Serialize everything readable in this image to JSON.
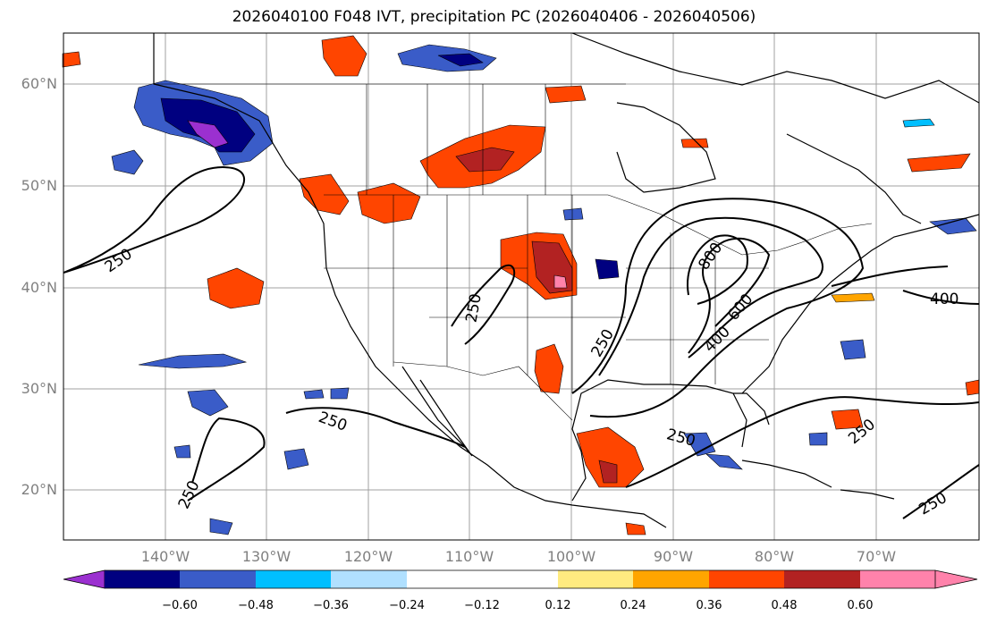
{
  "title": "2026040100 F048 IVT, precipitation PC (2026040406 - 2026040506)",
  "map": {
    "lat_labels": [
      "60°N",
      "50°N",
      "40°N",
      "30°N",
      "20°N"
    ],
    "lon_labels": [
      "140°W",
      "130°W",
      "120°W",
      "110°W",
      "100°W",
      "90°W",
      "80°W",
      "70°W"
    ],
    "gridline_color": "#a0a0a0",
    "contour_labels": [
      "250",
      "250",
      "250",
      "250",
      "250",
      "250",
      "250",
      "250",
      "400",
      "400",
      "600",
      "800"
    ]
  },
  "colorbar": {
    "colors": [
      "#9b30d0",
      "#000080",
      "#3a5cc8",
      "#00bfff",
      "#b0e0ff",
      "#ffffff",
      "#ffffff",
      "#ffeb80",
      "#ffa500",
      "#ff4500",
      "#b22222",
      "#ff82ab"
    ],
    "tick_labels": [
      "−0.60",
      "−0.48",
      "−0.36",
      "−0.24",
      "−0.12",
      "0.12",
      "0.24",
      "0.36",
      "0.48",
      "0.60"
    ]
  }
}
